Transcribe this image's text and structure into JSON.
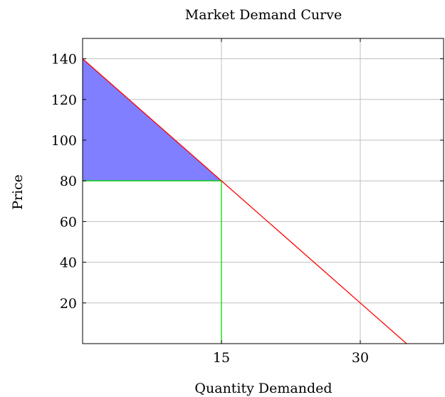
{
  "chart_data": {
    "type": "line",
    "title": "Market Demand Curve",
    "xlabel": "Quantity Demanded",
    "ylabel": "Price",
    "xlim": [
      0,
      39
    ],
    "ylim": [
      0,
      150
    ],
    "grid": true,
    "x_ticks": [
      15,
      30
    ],
    "y_ticks": [
      20,
      40,
      60,
      80,
      100,
      120,
      140
    ],
    "series": [
      {
        "kind": "demand-line",
        "color": "#ff0000",
        "x": [
          0,
          35
        ],
        "y": [
          140,
          0
        ]
      },
      {
        "kind": "shaded-area",
        "color": "#7f7fff",
        "x": [
          0,
          15,
          0
        ],
        "y": [
          140,
          80,
          80
        ]
      },
      {
        "kind": "reference-lines",
        "color": "#00dd00",
        "x": [
          0,
          15,
          15
        ],
        "y": [
          80,
          80,
          0
        ]
      }
    ],
    "colors": {
      "demand": "#ff0000",
      "surplus_fill": "#7f7fff",
      "reference": "#00dd00",
      "grid": "#bfbfbf",
      "axis": "#000000"
    }
  }
}
